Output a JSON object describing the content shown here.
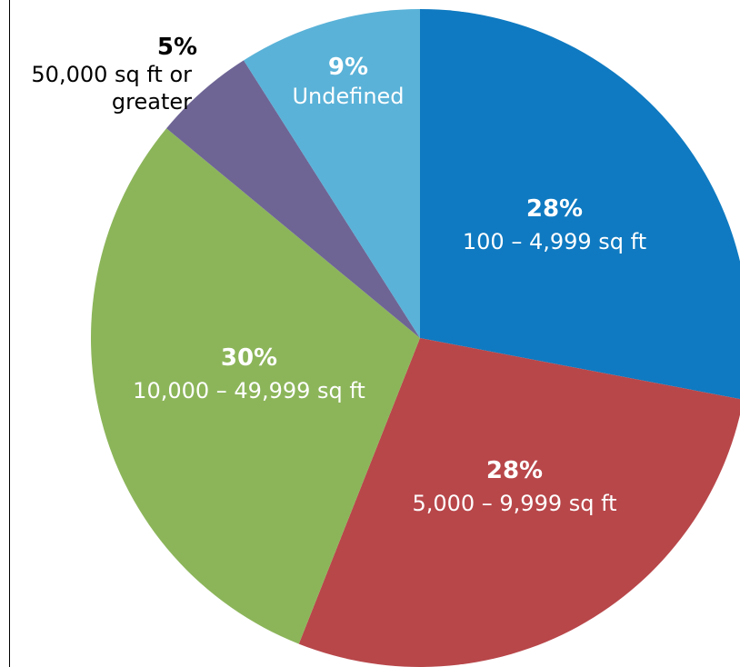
{
  "chart_data": {
    "type": "pie",
    "title": "",
    "start": "top, clockwise",
    "slices": [
      {
        "label": "100 – 4,999 sq ft",
        "percent_label": "28%",
        "value": 28,
        "color": "#0f7ac1",
        "text_color": "#ffffff"
      },
      {
        "label": "5,000 – 9,999 sq ft",
        "percent_label": "28%",
        "value": 28,
        "color": "#b8474a",
        "text_color": "#ffffff"
      },
      {
        "label": "10,000 – 49,999 sq ft",
        "percent_label": "30%",
        "value": 30,
        "color": "#8cb55a",
        "text_color": "#ffffff"
      },
      {
        "label": [
          "50,000 sq ft or",
          "greater"
        ],
        "percent_label": "5%",
        "value": 5,
        "color": "#6e6595",
        "text_color": "#000000"
      },
      {
        "label": "Undefined",
        "percent_label": "9%",
        "value": 9,
        "color": "#5ab2d8",
        "text_color": "#ffffff"
      }
    ]
  }
}
